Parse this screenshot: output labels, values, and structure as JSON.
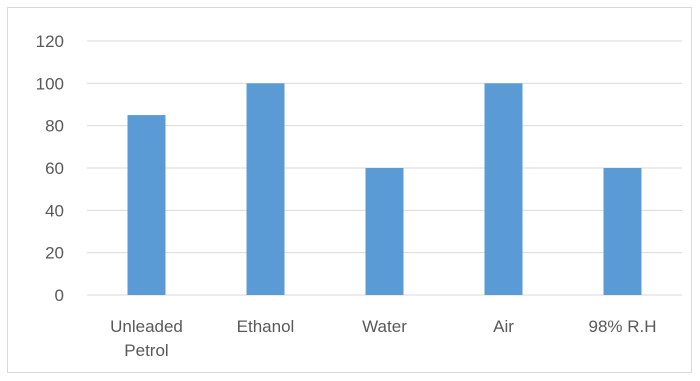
{
  "chart_data": {
    "type": "bar",
    "categories": [
      [
        "Unleaded",
        "Petrol"
      ],
      [
        "Ethanol"
      ],
      [
        "Water"
      ],
      [
        "Air"
      ],
      [
        "98% R.H"
      ]
    ],
    "values": [
      85,
      100,
      60,
      100,
      60
    ],
    "ylim": [
      0,
      120
    ],
    "yticks": [
      0,
      20,
      40,
      60,
      80,
      100,
      120
    ],
    "grid": true,
    "legend": "none",
    "colors": {
      "bar": "#5b9bd5",
      "grid": "#d9d9d9",
      "axis": "#d9d9d9",
      "text": "#595959"
    }
  }
}
